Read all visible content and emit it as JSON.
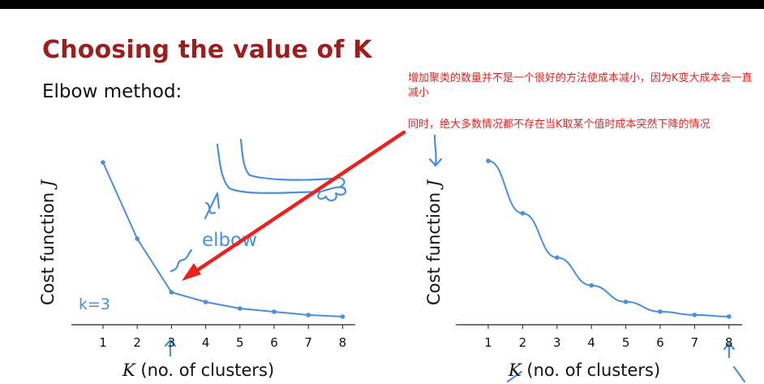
{
  "slide": {
    "title": "Choosing the value of K",
    "subtitle": "Elbow method:"
  },
  "annotations": {
    "note1": "增加聚类的数量并不是一个很好的方法使成本减小，因为K变大成本会一直减小",
    "note2": "同时，绝大多数情况都不存在当K取某个值时成本突然下降的情况",
    "elbow_label": "elbow",
    "k_label": "k=3"
  },
  "colors": {
    "title": "#9c1f1f",
    "curve": "#4a8fdc",
    "note": "#e8231f",
    "arrow": "#e8231f"
  },
  "chart_data": [
    {
      "type": "line",
      "x": [
        1,
        2,
        3,
        4,
        5,
        6,
        7,
        8
      ],
      "values": [
        1.0,
        0.53,
        0.2,
        0.14,
        0.1,
        0.08,
        0.06,
        0.05
      ],
      "ylabel": "Cost function",
      "ylabel_symbol": "J",
      "xlabel_symbol": "K",
      "xlabel": "(no. of clusters)",
      "xlim": [
        0.5,
        8.5
      ],
      "ylim": [
        0,
        1.1
      ],
      "grid": false
    },
    {
      "type": "line",
      "x": [
        1,
        2,
        3,
        4,
        5,
        6,
        7,
        8
      ],
      "values": [
        1.0,
        0.68,
        0.41,
        0.24,
        0.14,
        0.08,
        0.06,
        0.05
      ],
      "ylabel": "Cost function",
      "ylabel_symbol": "J",
      "xlabel_symbol": "K",
      "xlabel": "(no. of clusters)",
      "xlim": [
        0.5,
        8.5
      ],
      "ylim": [
        0,
        1.1
      ],
      "grid": false
    }
  ]
}
